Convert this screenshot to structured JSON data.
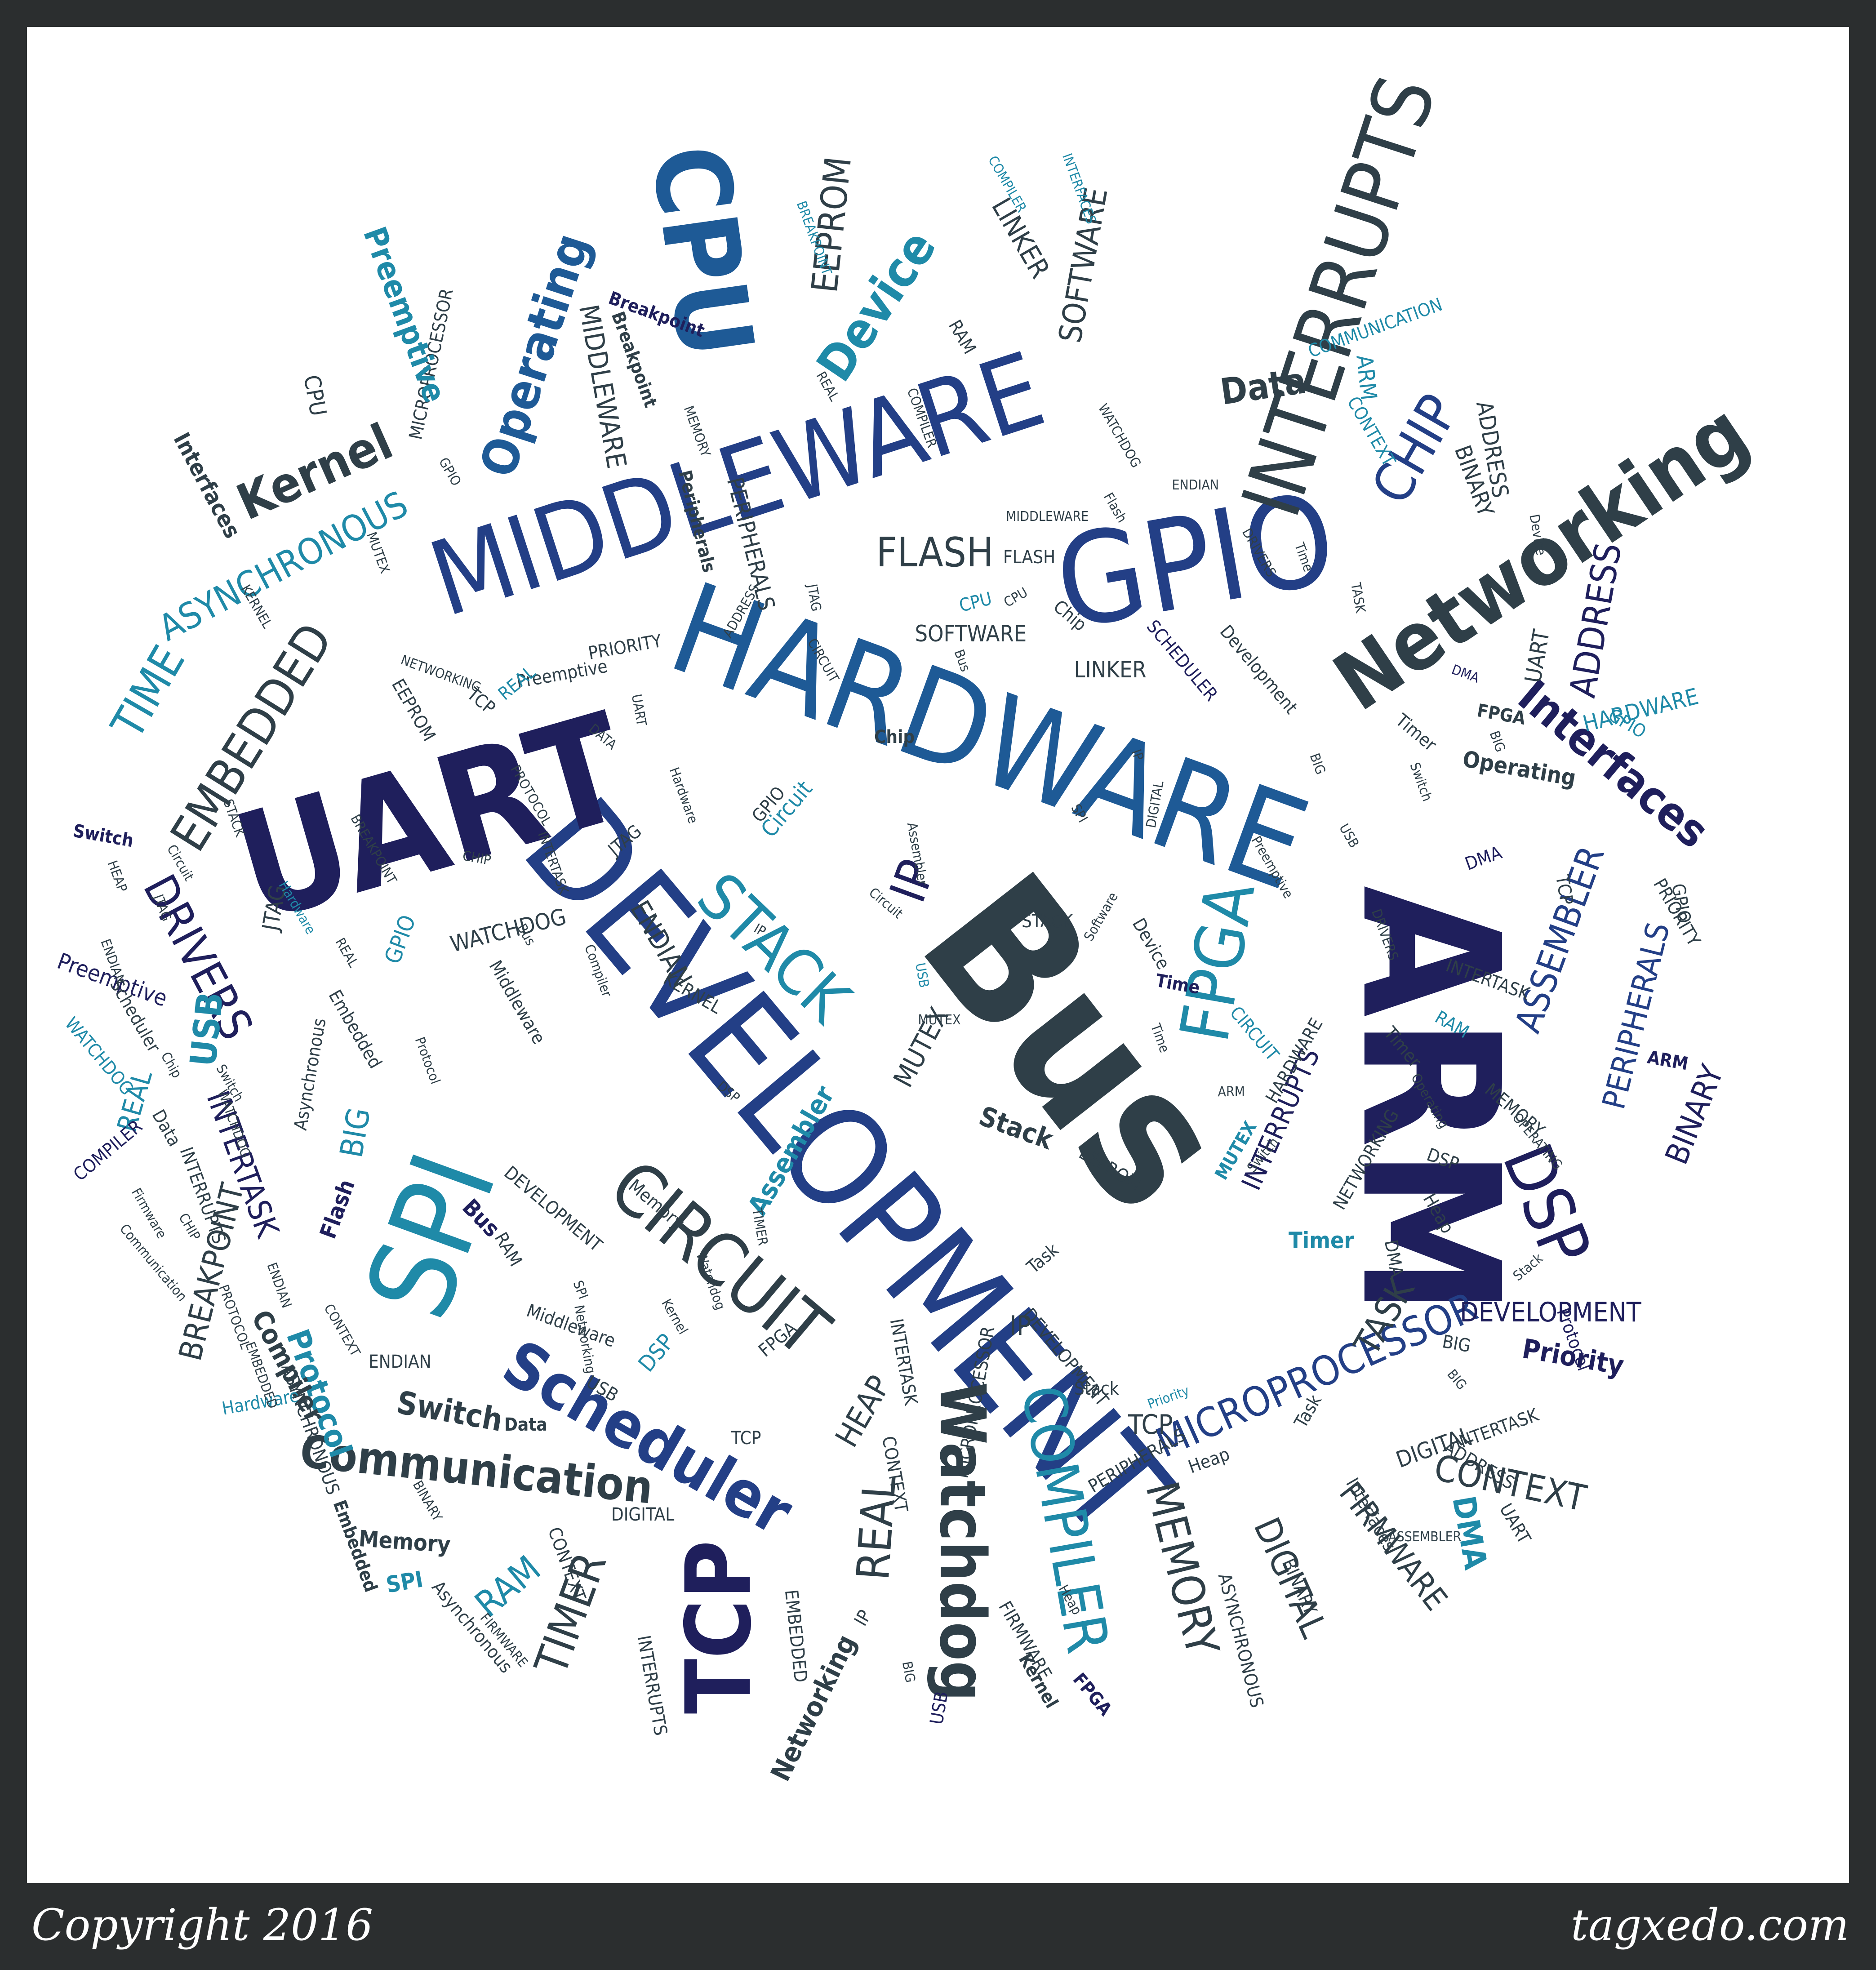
{
  "palette": {
    "navy": "#1f1f5c",
    "blue": "#233f86",
    "mid_blue": "#1e5a96",
    "teal": "#1f8aa8",
    "slate": "#2f3f48",
    "frame": "#2b2e2f"
  },
  "footer": {
    "copyright": "Copyright 2016",
    "site": "tagxedo.com"
  },
  "words": [
    "ARM",
    "Bus",
    "DEVELOPMENT",
    "HARDWARE",
    "UART",
    "MIDDLEWARE",
    "GPIO",
    "SPI",
    "CPU",
    "INTERRUPTS",
    "Networking",
    "CIRCUIT",
    "STACK",
    "FPGA",
    "Scheduler",
    "TCP",
    "COMPILER",
    "Watchdog",
    "DSP",
    "MICROPROCESSOR",
    "Communication",
    "EMBEDDED",
    "DRIVERS",
    "Operating",
    "Kernel",
    "CHIP",
    "INTERTASK",
    "ASYNCHRONOUS",
    "TIME",
    "FLASH",
    "TIMER",
    "REAL",
    "MEMORY",
    "DIGITAL",
    "FIRMWARE",
    "CONTEXT",
    "Interfaces",
    "ADDRESS",
    "ASSEMBLER",
    "PERIPHERALS",
    "BINARY",
    "TASK",
    "SOFTWARE",
    "LINKER",
    "Device",
    "EEPROM",
    "Data",
    "MIDDLEWARE",
    "MICROPROCESSOR",
    "Preemptive",
    "IP",
    "ENDIAN",
    "WATCHDOG",
    "JTAG",
    "BREAKPOINT",
    "Protocol",
    "Compiler",
    "Switch",
    "RAM",
    "HEAP",
    "DEVELOPMENT",
    "Priority",
    "USB",
    "BIG",
    "MUTEX",
    "KERNEL",
    "Stack",
    "EEPROM",
    "INTERRUPTS",
    "Timer",
    "HARDWARE",
    "UART",
    "COMMUNICATION",
    "ARM",
    "Operating",
    "Interfaces",
    "Breakpoint",
    "Peripherals",
    "CPU",
    "GPIO",
    "Assembler",
    "Bus",
    "Flash",
    "Memory",
    "SPI",
    "Embedded",
    "Asynchronous",
    "INTERRUPTS",
    "CONTEXT",
    "EMBEDDED",
    "Networking",
    "FIRMWARE",
    "USB",
    "Kernel",
    "FPGA",
    "ASYNCHRONOUS",
    "BINARY",
    "IP",
    "TCP",
    "Heap",
    "Task",
    "INTERTASK",
    "DMA",
    "Time",
    "Preemptive",
    "Switch",
    "GPIO",
    "WATCHDOG",
    "REAL",
    "COMPILER",
    "DEVELOPMENT",
    "PROTOCOL",
    "Hardware",
    "Middleware",
    "DSP",
    "Data",
    "ENDIAN",
    "CHIP",
    "Hardware",
    "DIGITAL",
    "SCHEDULER",
    "Development",
    "LINKER",
    "SOFTWARE",
    "CPU",
    "DIGITAL",
    "STACK",
    "PRIORITY",
    "Preemptive",
    "REAL",
    "TCP",
    "NETWORKING",
    "EEPROM",
    "DATA",
    "UART",
    "JTAG",
    "Circuit",
    "IP",
    "Chip",
    "Circuit",
    "USB",
    "MUTEX",
    "ARM",
    "Time",
    "CIRCUIT",
    "Bus",
    "GPIO",
    "Assembler",
    "DSP",
    "Software",
    "Device",
    "Chip",
    "DRIVERS",
    "ENDIAN",
    "CPU",
    "FLASH",
    "JTAG",
    "ADDRESS",
    "MIDDLEWARE",
    "INTERFACES",
    "BREAKPOINT",
    "PERIPHERALS",
    "BINARY",
    "Device",
    "RAM",
    "Breakpoint",
    "MEMORY",
    "COMPILER",
    "Timer",
    "CONTEXT",
    "ADDRESS",
    "Protocol",
    "ARM",
    "PRIORITY",
    "MUTEX",
    "RAM",
    "INTERTASK",
    "DMA",
    "Stack",
    "OPERATING",
    "BIG",
    "DMA",
    "GPIO",
    "FPGA",
    "Timer",
    "Heap",
    "TCP",
    "BIG",
    "Switch",
    "DMA",
    "TASK",
    "NETWORKING",
    "HARDWARE",
    "Operating",
    "Switch",
    "DSP",
    "BIG",
    "UART",
    "ADDRESS",
    "Interfaces",
    "ASSEMBLER",
    "PERIPHERALS",
    "Stack",
    "MICROPROCESSOR",
    "DEVELOPMENT",
    "Priority",
    "INTERTASK",
    "Task",
    "BIG",
    "Heap",
    "CONTEXT",
    "FIRMWARE",
    "BINARY",
    "ASYNCHRONOUS",
    "DIGITAL",
    "TCP",
    "IP",
    "Watchdog",
    "Kernel",
    "FPGA",
    "USB",
    "Networking",
    "EMBEDDED",
    "CONTEXT",
    "INTERRUPTS",
    "Firmware",
    "Memory",
    "SPI",
    "RAM",
    "TIMER",
    "Asynchronous",
    "Embedded",
    "Communication",
    "Scheduler",
    "ENDIAN",
    "Data",
    "HEAP",
    "REAL",
    "Switch",
    "Protocol",
    "Middleware",
    "Compiler",
    "PROTOCOL",
    "Hardware",
    "BREAKPOINT",
    "INTERTASK",
    "CIRCUIT",
    "Bus",
    "Flash",
    "IP",
    "SPI",
    "BIG",
    "USB",
    "DRIVERS",
    "Preemptive",
    "Time",
    "WATCHDOG",
    "COMPILER",
    "REAL",
    "MEMORY",
    "GPIO",
    "MUTEX",
    "KERNEL",
    "STACK",
    "Circuit",
    "JTAG",
    "Chip",
    "WATCHDOG",
    "CHIP",
    "ENDIAN",
    "CPU",
    "Software",
    "LINKER",
    "SCHEDULER",
    "Development",
    "NETWORKING",
    "TASK",
    "DATA",
    "EEPROM",
    "UART",
    "MIDDLEWARE",
    "CPU",
    "Kernel",
    "Interfaces",
    "Assembler",
    "DEVELOPMENT",
    "ASYNCHRONOUS",
    "TIME",
    "EMBEDDED",
    "JTAG",
    "Switch",
    "Preemptive",
    "Time",
    "USB",
    "WATCHDOG",
    "REAL",
    "COMPILER",
    "Hardware",
    "PROTOCOL",
    "Compiler"
  ]
}
